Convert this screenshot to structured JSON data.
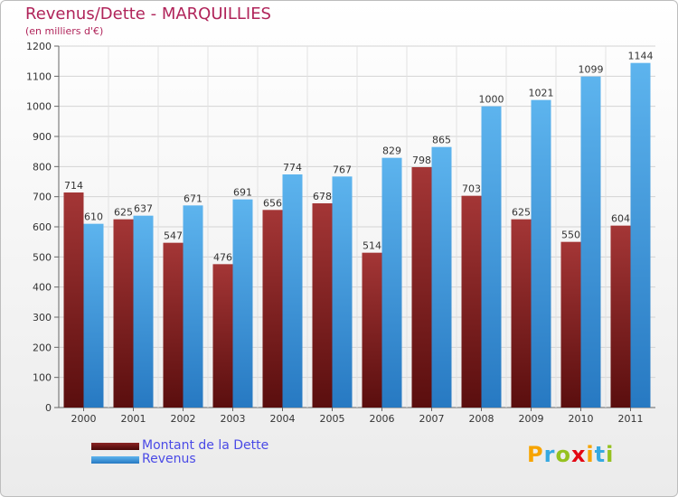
{
  "header": {
    "title": "Revenus/Dette - MARQUILLIES",
    "subtitle": "(en milliers d'€)"
  },
  "legend": [
    {
      "label": "Montant de la Dette",
      "color": "#7a1a1a"
    },
    {
      "label": "Revenus",
      "color": "#3d9ae0"
    }
  ],
  "brand": {
    "letters": [
      "P",
      "r",
      "o",
      "x",
      "i",
      "t",
      "i"
    ],
    "colors": [
      "#f7a400",
      "#36a9e1",
      "#95c11f",
      "#e30613",
      "#f7a400",
      "#36a9e1",
      "#95c11f"
    ]
  },
  "chart_data": {
    "type": "bar",
    "categories": [
      "2000",
      "2001",
      "2002",
      "2003",
      "2004",
      "2005",
      "2006",
      "2007",
      "2008",
      "2009",
      "2010",
      "2011"
    ],
    "series": [
      {
        "name": "Montant de la Dette",
        "values": [
          714,
          625,
          547,
          476,
          656,
          678,
          514,
          798,
          703,
          625,
          550,
          604
        ]
      },
      {
        "name": "Revenus",
        "values": [
          610,
          637,
          671,
          691,
          774,
          767,
          829,
          865,
          1000,
          1021,
          1099,
          1144
        ]
      }
    ],
    "yticks": [
      "0",
      "100",
      "200",
      "300",
      "400",
      "500",
      "600",
      "700",
      "800",
      "900",
      "1000",
      "1100",
      "1200"
    ],
    "ylim": [
      0,
      1200
    ],
    "grid": true,
    "legend_position": "bottom-left"
  }
}
